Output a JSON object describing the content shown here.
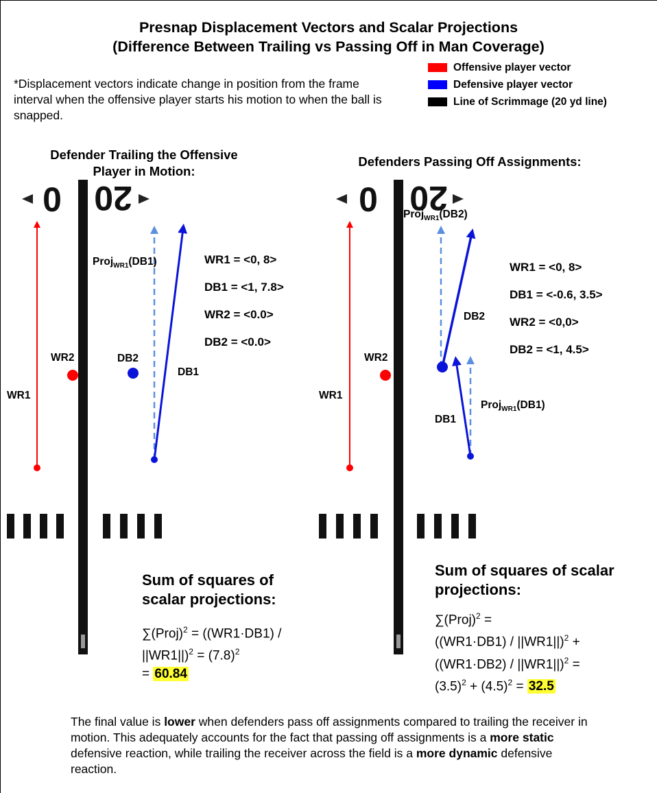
{
  "title_line1": "Presnap Displacement Vectors and Scalar Projections",
  "title_line2": "(Difference Between Trailing vs Passing Off in Man Coverage)",
  "note": "*Displacement vectors indicate change in position from the frame interval when the offensive player starts his motion to when the ball is snapped.",
  "legend": [
    {
      "label": "Offensive player vector",
      "color": "#ff0000"
    },
    {
      "label": "Defensive player vector",
      "color": "#0000ff"
    },
    {
      "label": "Line of Scrimmage (20 yd line)",
      "color": "#000000"
    }
  ],
  "colors": {
    "offense": "#ff0000",
    "defense": "#0a14d8",
    "projection": "#5b8fe0",
    "highlight": "#ffff33"
  },
  "yard_marker": "20",
  "left": {
    "title_line1": "Defender Trailing the Offensive",
    "title_line2": "Player in Motion:",
    "labels": {
      "wr1": "WR1",
      "wr2": "WR2",
      "db2": "DB2",
      "db1": "DB1",
      "proj": "Proj",
      "proj_sub": "WR1",
      "proj_arg": "(DB1)"
    },
    "vectors": [
      "WR1 = <0, 8>",
      "DB1 = <1, 7.8>",
      "WR2 = <0.0>",
      "DB2 = <0.0>"
    ],
    "sum_title_line1": "Sum of squares of",
    "sum_title_line2": "scalar projections:",
    "formula": {
      "sigma": "∑(Proj)",
      "eq": " = ((WR1·DB1) /",
      "line2a": "||WR1||)",
      "line2b": " = (7.8)",
      "line3": "= ",
      "result": "60.84"
    }
  },
  "right": {
    "title": "Defenders Passing Off Assignments:",
    "labels": {
      "wr1": "WR1",
      "wr2": "WR2",
      "db2": "DB2",
      "db1": "DB1",
      "proj2": "Proj",
      "proj2_sub": "WR1",
      "proj2_arg": "(DB2)",
      "proj1": "Proj",
      "proj1_sub": "WR1",
      "proj1_arg": "(DB1)"
    },
    "vectors": [
      "WR1 = <0, 8>",
      "DB1 = <-0.6, 3.5>",
      "WR2 = <0,0>",
      "DB2 = <1, 4.5>"
    ],
    "sum_title_line1": "Sum of squares of scalar",
    "sum_title_line2": "projections:",
    "formula": {
      "sigma": "∑(Proj)",
      "eq": " =",
      "line2": "((WR1·DB1) / ||WR1||)",
      "line2end": " +",
      "line3": "((WR1·DB2) / ||WR1||)",
      "line3end": " =",
      "line4a": "(3.5)",
      "line4b": " + (4.5)",
      "line4c": " = ",
      "result": "32.5"
    }
  },
  "conclusion": {
    "p1": "The final value is ",
    "b1": "lower",
    "p2": " when defenders pass off assignments compared to trailing the receiver in motion. This adequately accounts for the fact that passing off assignments is a ",
    "b2": "more static",
    "p3": " defensive reaction, while trailing the receiver across the field is a ",
    "b3": "more dynamic",
    "p4": " defensive reaction."
  }
}
